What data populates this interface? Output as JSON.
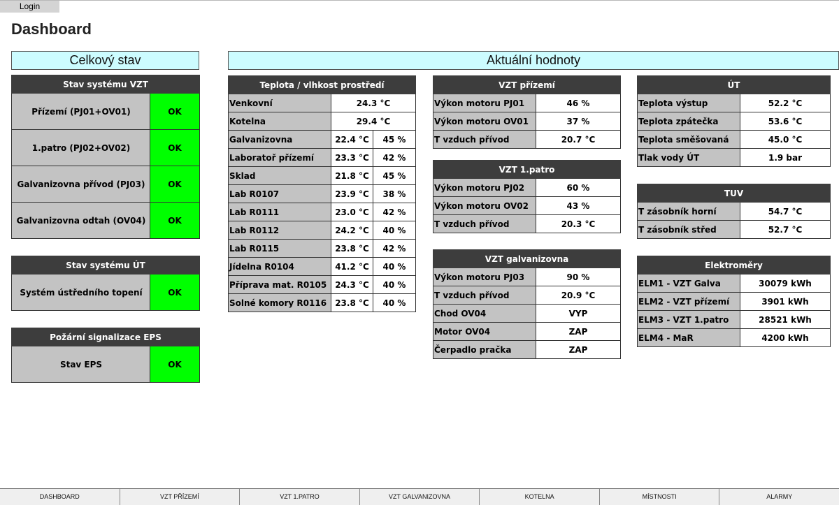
{
  "header": {
    "login_label": "Login",
    "title": "Dashboard"
  },
  "sections": {
    "overall": "Celkový stav",
    "current": "Aktuální hodnoty"
  },
  "vzt_status": {
    "title": "Stav systému VZT",
    "rows": [
      {
        "label": "Přízemí (PJ01+OV01)",
        "state": "OK"
      },
      {
        "label": "1.patro (PJ02+OV02)",
        "state": "OK"
      },
      {
        "label": "Galvanizovna přívod (PJ03)",
        "state": "OK"
      },
      {
        "label": "Galvanizovna odtah (OV04)",
        "state": "OK"
      }
    ]
  },
  "ut_status": {
    "title": "Stav systému ÚT",
    "rows": [
      {
        "label": "Systém ústředního topení",
        "state": "OK"
      }
    ]
  },
  "eps_status": {
    "title": "Požární signalizace EPS",
    "rows": [
      {
        "label": "Stav EPS",
        "state": "OK"
      }
    ]
  },
  "temps": {
    "title": "Teplota / vlhkost prostředí",
    "single": [
      {
        "label": "Venkovní",
        "value": "24.3 °C"
      },
      {
        "label": "Kotelna",
        "value": "29.4 °C"
      }
    ],
    "rows": [
      {
        "label": "Galvanizovna",
        "temp": "22.4 °C",
        "hum": "45 %"
      },
      {
        "label": "Laboratoř přízemí",
        "temp": "23.3 °C",
        "hum": "42 %"
      },
      {
        "label": "Sklad",
        "temp": "21.8 °C",
        "hum": "45 %"
      },
      {
        "label": "Lab R0107",
        "temp": "23.9 °C",
        "hum": "38 %"
      },
      {
        "label": "Lab R0111",
        "temp": "23.0 °C",
        "hum": "42 %"
      },
      {
        "label": "Lab R0112",
        "temp": "24.2 °C",
        "hum": "40 %"
      },
      {
        "label": "Lab R0115",
        "temp": "23.8 °C",
        "hum": "42 %"
      },
      {
        "label": "Jídelna R0104",
        "temp": "41.2 °C",
        "hum": "40 %"
      },
      {
        "label": "Příprava mat. R0105",
        "temp": "24.3 °C",
        "hum": "40 %"
      },
      {
        "label": "Solné komory R0116",
        "temp": "23.8 °C",
        "hum": "40 %"
      }
    ]
  },
  "vzt_prizemi": {
    "title": "VZT přízemí",
    "rows": [
      {
        "label": "Výkon motoru PJ01",
        "value": "46 %"
      },
      {
        "label": "Výkon motoru OV01",
        "value": "37 %"
      },
      {
        "label": "T vzduch přívod",
        "value": "20.7 °C"
      }
    ]
  },
  "vzt_patro": {
    "title": "VZT 1.patro",
    "rows": [
      {
        "label": "Výkon motoru PJ02",
        "value": "60 %"
      },
      {
        "label": "Výkon motoru OV02",
        "value": "43 %"
      },
      {
        "label": "T vzduch přívod",
        "value": "20.3 °C"
      }
    ]
  },
  "vzt_galva": {
    "title": "VZT galvanizovna",
    "rows": [
      {
        "label": "Výkon motoru PJ03",
        "value": "90 %"
      },
      {
        "label": "T vzduch přívod",
        "value": "20.9 °C"
      },
      {
        "label": "Chod OV04",
        "value": "VYP"
      },
      {
        "label": "Motor OV04",
        "value": "ZAP"
      },
      {
        "label": "Čerpadlo pračka",
        "value": "ZAP"
      }
    ]
  },
  "ut": {
    "title": "ÚT",
    "rows": [
      {
        "label": "Teplota výstup",
        "value": "52.2 °C"
      },
      {
        "label": "Teplota zpátečka",
        "value": "53.6 °C"
      },
      {
        "label": "Teplota směšovaná",
        "value": "45.0 °C"
      },
      {
        "label": "Tlak vody ÚT",
        "value": "1.9 bar"
      }
    ]
  },
  "tuv": {
    "title": "TUV",
    "rows": [
      {
        "label": "T zásobník horní",
        "value": "54.7 °C"
      },
      {
        "label": "T zásobník střed",
        "value": "52.7 °C"
      }
    ]
  },
  "elektromery": {
    "title": "Elektroměry",
    "rows": [
      {
        "label": "ELM1 - VZT Galva",
        "value": "30079 kWh"
      },
      {
        "label": "ELM2 - VZT přízemí",
        "value": "3901 kWh"
      },
      {
        "label": "ELM3 - VZT 1.patro",
        "value": "28521 kWh"
      },
      {
        "label": "ELM4 - MaR",
        "value": "4200 kWh"
      }
    ]
  },
  "nav": {
    "items": [
      "DASHBOARD",
      "VZT PŘÍZEMÍ",
      "VZT 1.PATRO",
      "VZT GALVANIZOVNA",
      "KOTELNA",
      "MÍSTNOSTI",
      "ALARMY"
    ]
  },
  "colors": {
    "ok": "#00ff00",
    "header": "#3d3d3d",
    "banner": "#ccfcff",
    "label_bg": "#c3c3c3"
  }
}
